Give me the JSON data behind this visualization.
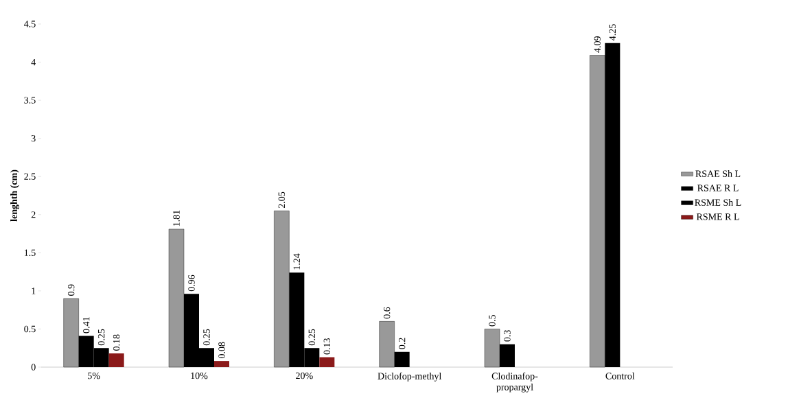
{
  "chart_data": {
    "type": "bar",
    "ylabel": "lenghth (cm)",
    "categories": [
      "5%",
      "10%",
      "20%",
      "Diclofop-methyl",
      "Clodinafop-propargyl",
      "Control"
    ],
    "series": [
      {
        "name": "RSAE Sh L",
        "color": "#000000",
        "values": [
          0.9,
          1.81,
          2.05,
          0.6,
          0.5,
          4.09
        ]
      },
      {
        "name": "RSAE R L",
        "color": "#000000",
        "values": [
          0.41,
          0.96,
          1.24,
          0.2,
          0.3,
          4.25
        ]
      },
      {
        "name": "RSME Sh L",
        "color": "#000000",
        "values": [
          0.25,
          0.25,
          0.25,
          null,
          null,
          null
        ]
      },
      {
        "name": "RSME R L",
        "color": "#8b1a1a",
        "values": [
          0.18,
          0.08,
          0.13,
          null,
          null,
          null
        ]
      }
    ],
    "ylim": [
      0,
      4.5
    ],
    "yticks": [
      0,
      0.5,
      1,
      1.5,
      2,
      2.5,
      3,
      3.5,
      4,
      4.5
    ],
    "data_labels": true,
    "legend": "right",
    "grid": false
  }
}
